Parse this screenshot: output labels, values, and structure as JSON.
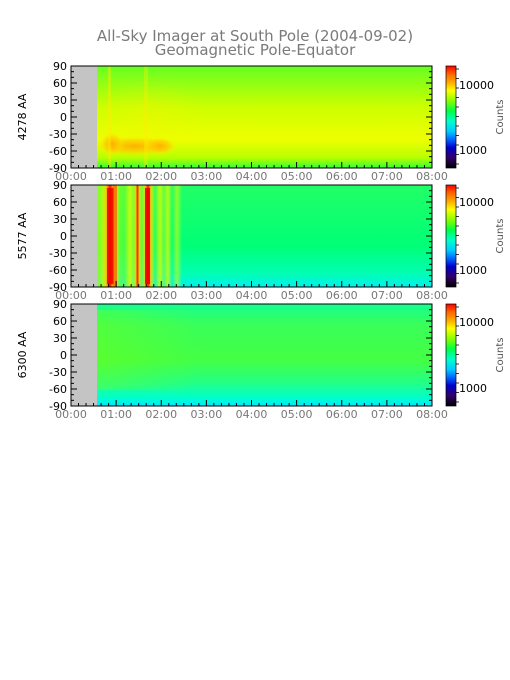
{
  "chart_data": {
    "type": "heatmap",
    "title": "All-Sky Imager at South Pole (2004-09-02)",
    "subtitle": "Geomagnetic Pole-Equator",
    "x_tick_labels": [
      "00:00",
      "01:00",
      "02:00",
      "03:00",
      "04:00",
      "05:00",
      "06:00",
      "07:00",
      "08:00"
    ],
    "x_range_hours": [
      0,
      8
    ],
    "y_tick_labels": [
      "90",
      "60",
      "30",
      "0",
      "-30",
      "-60",
      "-90"
    ],
    "y_range": [
      -90,
      90
    ],
    "data_start_hour": 0.55,
    "colorbar": {
      "label": "Counts",
      "scale": "log",
      "tick_labels": [
        "10000",
        "1000"
      ],
      "colors": [
        "#ff0000",
        "#ff9900",
        "#ffff00",
        "#80ff00",
        "#00ff40",
        "#00ffcc",
        "#00ccff",
        "#0066ff",
        "#0000cc",
        "#330066",
        "#000000"
      ]
    },
    "panels": [
      {
        "ylabel": "4278 AA",
        "level": "moderate",
        "features": [
          {
            "type": "band",
            "lat_range": [
              -68,
              -48
            ],
            "time_range": [
              0.55,
              2.2
            ]
          }
        ]
      },
      {
        "ylabel": "5577 AA",
        "level": "high",
        "features": [
          {
            "type": "stripes",
            "times": [
              0.85,
              0.95,
              1.35,
              1.65,
              1.75,
              2.1
            ]
          }
        ]
      },
      {
        "ylabel": "6300 AA",
        "level": "low",
        "features": [
          {
            "type": "equatorward_gradient",
            "lat_range": [
              -90,
              -60
            ]
          }
        ]
      }
    ]
  }
}
